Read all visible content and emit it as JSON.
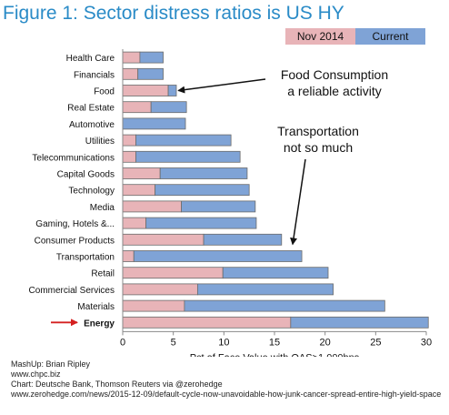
{
  "title": "Figure 1: Sector distress ratios is US HY",
  "chart_data": {
    "type": "bar",
    "orientation": "horizontal",
    "stacked": true,
    "categories": [
      "Health Care",
      "Financials",
      "Food",
      "Real Estate",
      "Automotive",
      "Utilities",
      "Telecommunications",
      "Capital Goods",
      "Technology",
      "Media",
      "Gaming, Hotels &...",
      "Consumer Products",
      "Transportation",
      "Retail",
      "Commercial Services",
      "Materials",
      "Energy"
    ],
    "series": [
      {
        "name": "Nov 2014",
        "color": "#e8b4b8",
        "values": [
          1.7,
          1.5,
          4.5,
          2.8,
          0,
          1.3,
          1.3,
          3.7,
          3.2,
          5.8,
          2.3,
          8.0,
          1.1,
          9.9,
          7.4,
          6.1,
          16.6
        ]
      },
      {
        "name": "Current",
        "color": "#7fa3d6",
        "values": [
          2.3,
          2.5,
          0.8,
          3.5,
          6.2,
          9.4,
          10.3,
          8.6,
          9.3,
          7.3,
          10.9,
          7.7,
          16.6,
          10.4,
          13.4,
          19.8,
          13.6
        ]
      }
    ],
    "xlabel": "Pct of Face Value with OAS>1,000bps",
    "ylabel": "",
    "xlim": [
      0,
      30
    ],
    "xticks": [
      "0",
      "5",
      "10",
      "15",
      "20",
      "25",
      "30"
    ],
    "grid": false,
    "legend_position": "top-right",
    "highlight_category": "Energy",
    "annotations": [
      {
        "text_lines": [
          "Food Consumption",
          "a reliable activity"
        ],
        "target": "Food"
      },
      {
        "text_lines": [
          "Transportation",
          "not so much"
        ],
        "target": "Transportation"
      }
    ]
  },
  "credits": [
    "MashUp: Brian Ripley",
    "www.chpc.biz",
    "Chart: Deutsche Bank, Thomson Reuters via @zerohedge",
    "www.zerohedge.com/news/2015-12-09/default-cycle-now-unavoidable-how-junk-cancer-spread-entire-high-yield-space"
  ]
}
